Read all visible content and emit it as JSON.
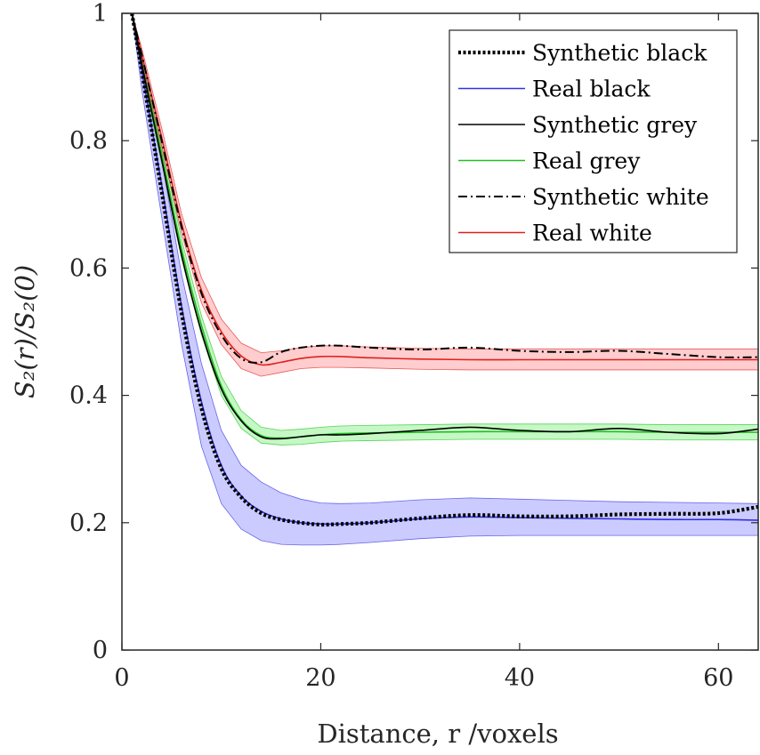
{
  "chart_data": {
    "type": "line",
    "title": "",
    "xlabel": "Distance, r /voxels",
    "ylabel": "S₂(r)/S₂(0)",
    "xlim": [
      0,
      64
    ],
    "ylim": [
      0,
      1
    ],
    "xticks": [
      0,
      20,
      40,
      60
    ],
    "yticks": [
      0,
      0.2,
      0.4,
      0.6,
      0.8,
      1
    ],
    "xtick_labels": [
      "0",
      "20",
      "40",
      "60"
    ],
    "ytick_labels": [
      "0",
      "0.2",
      "0.4",
      "0.6",
      "0.8",
      "1"
    ],
    "grid": false,
    "legend_position": "top-right",
    "x": [
      1,
      2,
      4,
      6,
      8,
      10,
      12,
      14,
      16,
      18,
      20,
      22,
      25,
      30,
      35,
      40,
      45,
      50,
      55,
      60,
      64
    ],
    "series": [
      {
        "name": "Synthetic black",
        "style": "dotted",
        "color": "#000000",
        "band": false,
        "values": [
          1.0,
          0.91,
          0.72,
          0.53,
          0.38,
          0.285,
          0.24,
          0.215,
          0.205,
          0.2,
          0.197,
          0.198,
          0.2,
          0.207,
          0.212,
          0.21,
          0.21,
          0.213,
          0.214,
          0.215,
          0.225
        ]
      },
      {
        "name": "Real black",
        "style": "solid",
        "color": "#3030e0",
        "band": true,
        "band_color": "#8c8cff",
        "values": [
          1.0,
          0.91,
          0.73,
          0.54,
          0.39,
          0.29,
          0.242,
          0.218,
          0.206,
          0.2,
          0.198,
          0.198,
          0.2,
          0.206,
          0.209,
          0.208,
          0.207,
          0.206,
          0.205,
          0.205,
          0.204
        ],
        "lower": [
          1.0,
          0.88,
          0.68,
          0.48,
          0.32,
          0.23,
          0.19,
          0.172,
          0.166,
          0.165,
          0.165,
          0.166,
          0.169,
          0.175,
          0.179,
          0.18,
          0.18,
          0.18,
          0.18,
          0.18,
          0.18
        ],
        "upper": [
          1.0,
          0.93,
          0.77,
          0.59,
          0.45,
          0.345,
          0.29,
          0.264,
          0.247,
          0.237,
          0.231,
          0.23,
          0.231,
          0.236,
          0.239,
          0.237,
          0.235,
          0.233,
          0.232,
          0.231,
          0.23
        ]
      },
      {
        "name": "Synthetic grey",
        "style": "solid",
        "color": "#000000",
        "band": false,
        "values": [
          1.0,
          0.92,
          0.77,
          0.62,
          0.5,
          0.41,
          0.36,
          0.335,
          0.332,
          0.335,
          0.338,
          0.338,
          0.34,
          0.345,
          0.35,
          0.345,
          0.343,
          0.348,
          0.342,
          0.34,
          0.347
        ]
      },
      {
        "name": "Real grey",
        "style": "solid",
        "color": "#20c020",
        "band": true,
        "band_color": "#7ef07e",
        "values": [
          1.0,
          0.92,
          0.78,
          0.63,
          0.51,
          0.415,
          0.362,
          0.337,
          0.333,
          0.335,
          0.338,
          0.34,
          0.341,
          0.342,
          0.343,
          0.343,
          0.343,
          0.343,
          0.342,
          0.342,
          0.342
        ],
        "lower": [
          1.0,
          0.91,
          0.765,
          0.615,
          0.495,
          0.4,
          0.348,
          0.325,
          0.322,
          0.323,
          0.326,
          0.328,
          0.329,
          0.33,
          0.331,
          0.331,
          0.331,
          0.331,
          0.33,
          0.33,
          0.33
        ],
        "upper": [
          1.0,
          0.93,
          0.795,
          0.645,
          0.525,
          0.43,
          0.376,
          0.35,
          0.345,
          0.347,
          0.35,
          0.352,
          0.353,
          0.354,
          0.355,
          0.355,
          0.355,
          0.355,
          0.354,
          0.354,
          0.354
        ]
      },
      {
        "name": "Synthetic white",
        "style": "dashdot",
        "color": "#000000",
        "band": false,
        "values": [
          1.0,
          0.935,
          0.8,
          0.665,
          0.56,
          0.495,
          0.458,
          0.452,
          0.468,
          0.475,
          0.478,
          0.478,
          0.475,
          0.472,
          0.475,
          0.47,
          0.468,
          0.47,
          0.465,
          0.46,
          0.46
        ]
      },
      {
        "name": "Real white",
        "style": "solid",
        "color": "#e02020",
        "band": true,
        "band_color": "#ff9090",
        "values": [
          1.0,
          0.935,
          0.805,
          0.67,
          0.565,
          0.5,
          0.462,
          0.448,
          0.452,
          0.458,
          0.461,
          0.461,
          0.459,
          0.457,
          0.456,
          0.456,
          0.456,
          0.456,
          0.456,
          0.456,
          0.456
        ],
        "lower": [
          1.0,
          0.925,
          0.79,
          0.655,
          0.545,
          0.48,
          0.442,
          0.43,
          0.436,
          0.442,
          0.444,
          0.444,
          0.443,
          0.441,
          0.44,
          0.44,
          0.44,
          0.44,
          0.44,
          0.44,
          0.44
        ],
        "upper": [
          1.0,
          0.945,
          0.82,
          0.685,
          0.585,
          0.52,
          0.482,
          0.467,
          0.47,
          0.475,
          0.478,
          0.478,
          0.476,
          0.474,
          0.473,
          0.473,
          0.473,
          0.473,
          0.473,
          0.473,
          0.473
        ]
      }
    ]
  }
}
